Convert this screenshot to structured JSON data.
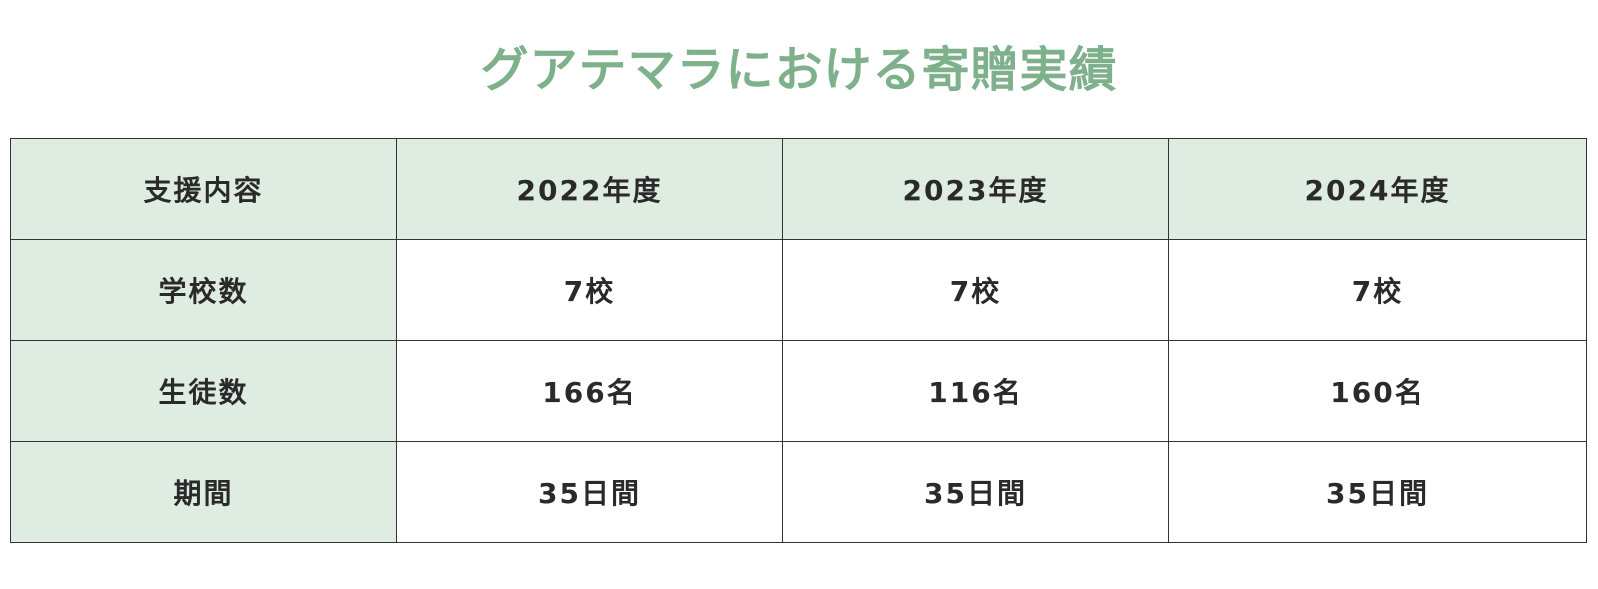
{
  "title": "グアテマラにおける寄贈実績",
  "table": {
    "headers": [
      "支援内容",
      "2022年度",
      "2023年度",
      "2024年度"
    ],
    "rows": [
      {
        "label": "学校数",
        "values": [
          "7校",
          "7校",
          "7校"
        ]
      },
      {
        "label": "生徒数",
        "values": [
          "166名",
          "116名",
          "160名"
        ]
      },
      {
        "label": "期間",
        "values": [
          "35日間",
          "35日間",
          "35日間"
        ]
      }
    ]
  },
  "colors": {
    "title": "#7fb08c",
    "header_background": "#dfece2",
    "border": "#333333"
  }
}
